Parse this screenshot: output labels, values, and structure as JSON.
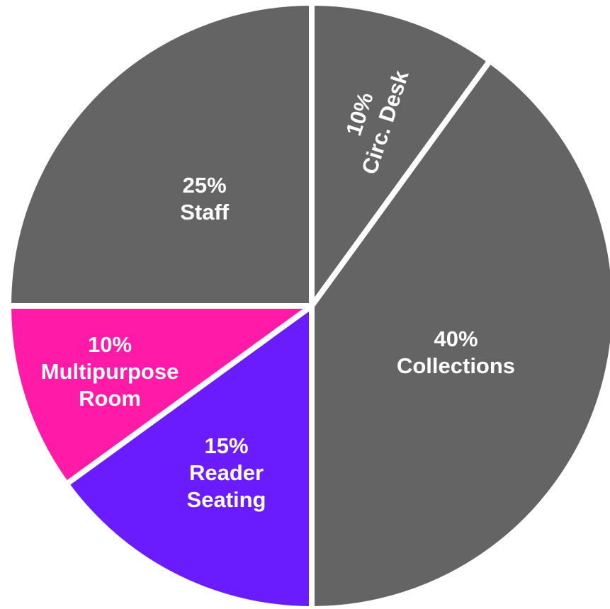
{
  "chart_data": {
    "type": "pie",
    "categories": [
      "Circ. Desk",
      "Collections",
      "Reader Seating",
      "Multipurpose Room",
      "Staff"
    ],
    "values": [
      10,
      40,
      15,
      10,
      25
    ],
    "value_labels": [
      "10%",
      "40%",
      "15%",
      "10%",
      "25%"
    ],
    "colors": [
      "#646464",
      "#646464",
      "#6a1cff",
      "#ff1aa8",
      "#646464"
    ]
  }
}
